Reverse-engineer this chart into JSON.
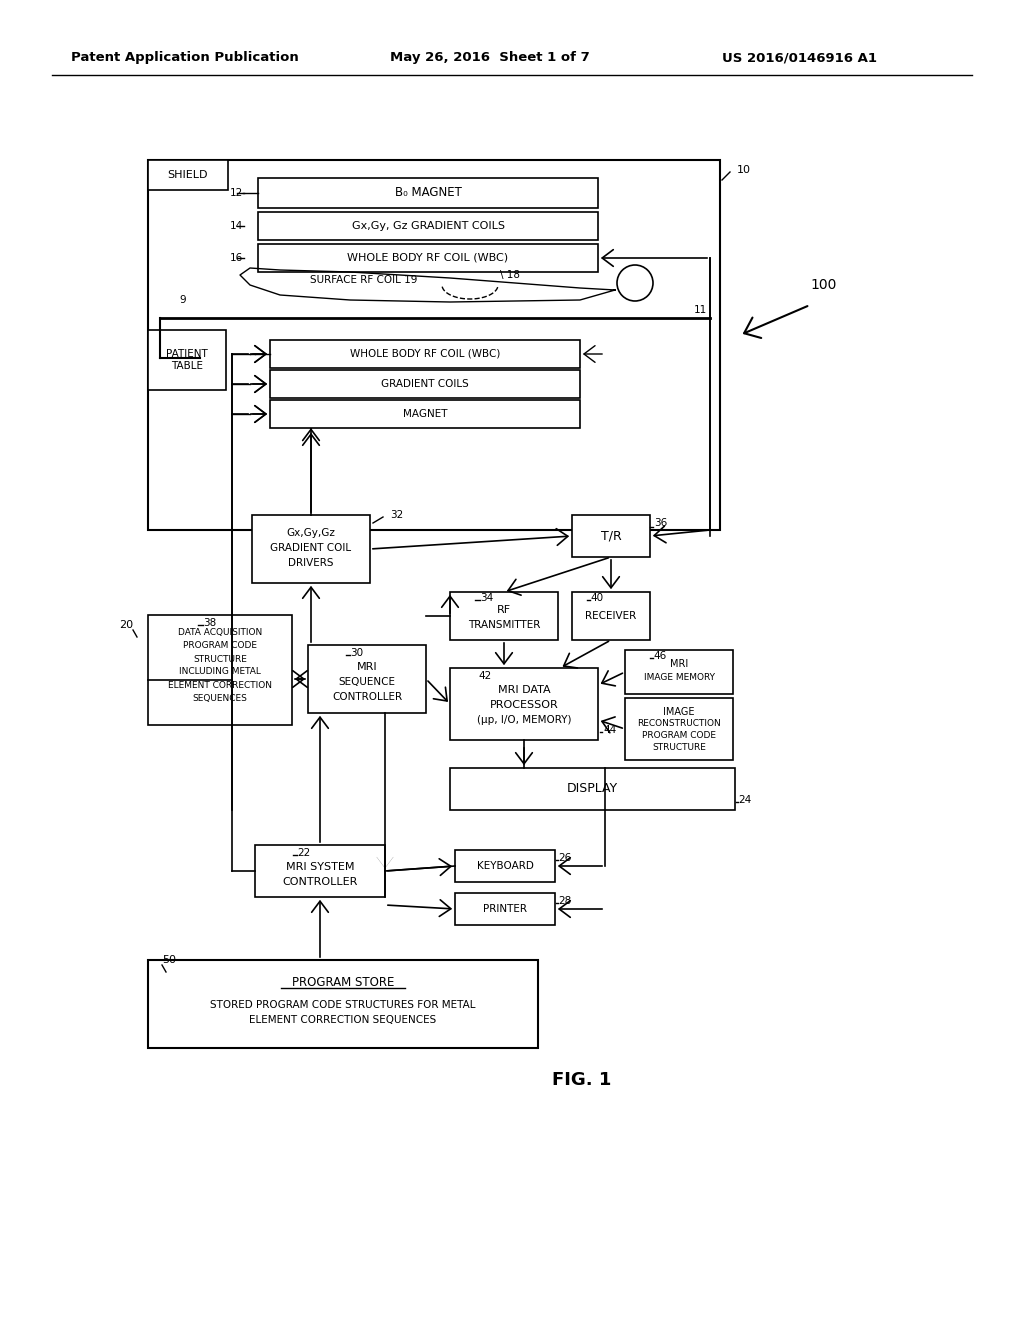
{
  "header_left": "Patent Application Publication",
  "header_mid": "May 26, 2016  Sheet 1 of 7",
  "header_right": "US 2016/0146916 A1",
  "fig_label": "FIG. 1",
  "bg_color": "#ffffff",
  "border_color": "#000000",
  "text_color": "#000000"
}
